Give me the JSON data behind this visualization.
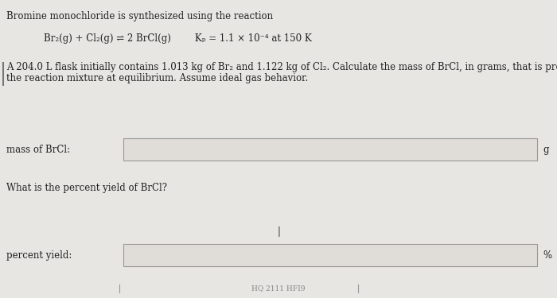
{
  "background_color": "#c8c8c8",
  "page_color": "#e8e6e3",
  "title_line": "Bromine monochloride is synthesized using the reaction",
  "reaction_line": "Br₂(g) + Cl₂(g) ⇌ 2 BrCl(g)        Kₚ = 1.1 × 10⁻⁴ at 150 K",
  "problem_text_line1": "A 204.0 L flask initially contains 1.013 kg of Br₂ and 1.122 kg of Cl₂. Calculate the mass of BrCl, in grams, that is present in",
  "problem_text_line2": "the reaction mixture at equilibrium. Assume ideal gas behavior.",
  "label1": "mass of BrCl:",
  "unit1": "g",
  "label2": "percent yield:",
  "unit2": "%",
  "question2": "What is the percent yield of BrCl?",
  "box_fill": "#e0ddd8",
  "box_edge": "#999999",
  "text_color": "#222222",
  "fontsize_main": 8.5,
  "left_bar_color": "#777777",
  "bottom_text": "HQ 2111 HFI9",
  "cursor_text": "|"
}
